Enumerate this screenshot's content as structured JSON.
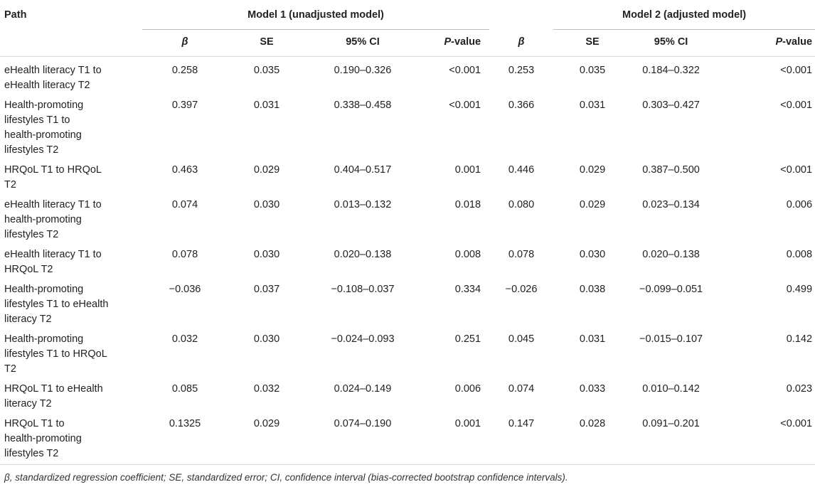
{
  "table": {
    "col_path": "Path",
    "group1": "Model 1 (unadjusted model)",
    "group2": "Model 2 (adjusted model)",
    "sub": {
      "beta": "β",
      "se": "SE",
      "ci": "95% CI",
      "p_italic": "P",
      "p_rest": "-value"
    },
    "rows": [
      {
        "path": [
          "eHealth literacy T1 to",
          "eHealth literacy T2"
        ],
        "m1": [
          "0.258",
          "0.035",
          "0.190–0.326",
          "<0.001"
        ],
        "m2": [
          "0.253",
          "0.035",
          "0.184–0.322",
          "<0.001"
        ]
      },
      {
        "path": [
          "Health-promoting",
          "lifestyles T1 to",
          "health-promoting",
          "lifestyles T2"
        ],
        "m1": [
          "0.397",
          "0.031",
          "0.338–0.458",
          "<0.001"
        ],
        "m2": [
          "0.366",
          "0.031",
          "0.303–0.427",
          "<0.001"
        ]
      },
      {
        "path": [
          "HRQoL T1 to HRQoL",
          "T2"
        ],
        "m1": [
          "0.463",
          "0.029",
          "0.404–0.517",
          "0.001"
        ],
        "m2": [
          "0.446",
          "0.029",
          "0.387–0.500",
          "<0.001"
        ]
      },
      {
        "path": [
          "eHealth literacy T1 to",
          "health-promoting",
          "lifestyles T2"
        ],
        "m1": [
          "0.074",
          "0.030",
          "0.013–0.132",
          "0.018"
        ],
        "m2": [
          "0.080",
          "0.029",
          "0.023–0.134",
          "0.006"
        ]
      },
      {
        "path": [
          "eHealth literacy T1 to",
          "HRQoL T2"
        ],
        "m1": [
          "0.078",
          "0.030",
          "0.020–0.138",
          "0.008"
        ],
        "m2": [
          "0.078",
          "0.030",
          "0.020–0.138",
          "0.008"
        ]
      },
      {
        "path": [
          "Health-promoting",
          "lifestyles T1 to eHealth",
          "literacy T2"
        ],
        "m1": [
          "−0.036",
          "0.037",
          "−0.108–0.037",
          "0.334"
        ],
        "m2": [
          "−0.026",
          "0.038",
          "−0.099–0.051",
          "0.499"
        ]
      },
      {
        "path": [
          "Health-promoting",
          "lifestyles T1 to HRQoL",
          "T2"
        ],
        "m1": [
          "0.032",
          "0.030",
          "−0.024–0.093",
          "0.251"
        ],
        "m2": [
          "0.045",
          "0.031",
          "−0.015–0.107",
          "0.142"
        ]
      },
      {
        "path": [
          "HRQoL T1 to eHealth",
          "literacy T2"
        ],
        "m1": [
          "0.085",
          "0.032",
          "0.024–0.149",
          "0.006"
        ],
        "m2": [
          "0.074",
          "0.033",
          "0.010–0.142",
          "0.023"
        ]
      },
      {
        "path": [
          "HRQoL T1 to",
          "health-promoting",
          "lifestyles T2"
        ],
        "m1": [
          "0.1325",
          "0.029",
          "0.074–0.190",
          "0.001"
        ],
        "m2": [
          "0.147",
          "0.028",
          "0.091–0.201",
          "<0.001"
        ]
      }
    ]
  },
  "footnote": "β, standardized regression coefficient; SE, standardized error; CI, confidence interval (bias-corrected bootstrap confidence intervals)."
}
